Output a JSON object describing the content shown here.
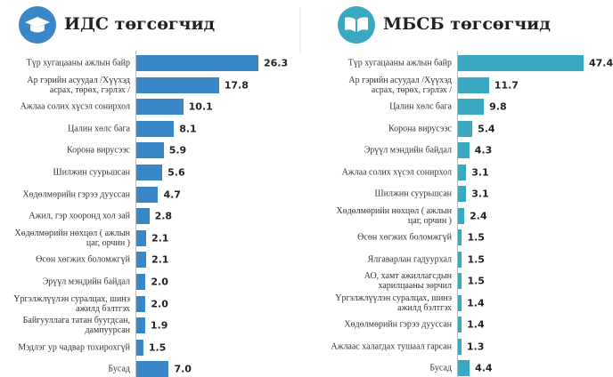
{
  "chart_data": [
    {
      "type": "bar",
      "orientation": "horizontal",
      "title": "ИДС төгсөгчид",
      "color": "#3a87c8",
      "categories": [
        "Түр хугацааны ажлын байр",
        "Ар гэрийн асуудал /Хүүхэд\nасрах, төрөх, гэрлэх /",
        "Ажлаа солих хүсэл сонирхол",
        "Цалин хөлс бага",
        "Корона вирусээс",
        "Шилжин суурьшсан",
        "Хөдөлмөрийн гэрээ дуусcан",
        "Ажил, гэр хооронд хол зай",
        "Хөдөлмөрийн нөхцөл ( ажлын\nцаг, орчин )",
        "Өсөн хөгжих боломжгүй",
        "Эрүүл мэндийн байдал",
        "Үргэлжлүүлэн суралцах, шинэ\nажилд бэлтгэх",
        "Байгууллага татан буугдсан,\nдампуурсан",
        "Мэдлэг ур чадвар тохирохгүй",
        "Бусад"
      ],
      "values": [
        26.3,
        17.8,
        10.1,
        8.1,
        5.9,
        5.6,
        4.7,
        2.8,
        2.1,
        2.1,
        2.0,
        2.0,
        1.9,
        1.5,
        7.0
      ],
      "value_labels": [
        "26.3",
        "17.8",
        "10.1",
        "8.1",
        "5.9",
        "5.6",
        "4.7",
        "2.8",
        "2.1",
        "2.1",
        "2.0",
        "2.0",
        "1.9",
        "1.5",
        "7.0"
      ]
    },
    {
      "type": "bar",
      "orientation": "horizontal",
      "title": "МБСБ төгсөгчид",
      "color": "#3aa8c1",
      "categories": [
        "Түр хугацааны ажлын байр",
        "Ар гэрийн асуудал /Хүүхэд\nасрах, төрөх, гэрлэх /",
        "Цалин хөлс бага",
        "Корона вирусээс",
        "Эрүүл мэндийн байдал",
        "Ажлаа солих хүсэл сонирхол",
        "Шилжин суурьшсан",
        "Хөдөлмөрийн нөхцөл ( ажлын\nцаг, орчин )",
        "Өсөн хөгжих боломжгүй",
        "Ялгаварлан гадуурхал",
        "АО, хамт ажиллагсдын\nхарилцааны зөрчил",
        "Үргэлжлүүлэн суралцах, шинэ\nажилд бэлтгэх",
        "Хөдөлмөрийн гэрээ дуусcан",
        "Ажлаас халагдах тушаал гарсан",
        "Бусад"
      ],
      "values": [
        47.4,
        11.7,
        9.8,
        5.4,
        4.3,
        3.1,
        3.1,
        2.4,
        1.5,
        1.5,
        1.5,
        1.4,
        1.4,
        1.3,
        4.4
      ],
      "value_labels": [
        "47.4",
        "11.7",
        "9.8",
        "5.4",
        "4.3",
        "3.1",
        "3.1",
        "2.4",
        "1.5",
        "1.5",
        "1.5",
        "1.4",
        "1.4",
        "1.3",
        "4.4"
      ]
    }
  ]
}
